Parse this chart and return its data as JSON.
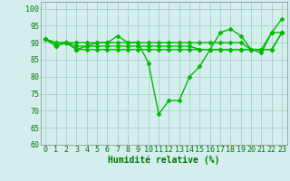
{
  "xlabel": "Humidité relative (%)",
  "xlim": [
    -0.5,
    23.5
  ],
  "ylim": [
    60,
    102
  ],
  "yticks": [
    60,
    65,
    70,
    75,
    80,
    85,
    90,
    95,
    100
  ],
  "xticks": [
    0,
    1,
    2,
    3,
    4,
    5,
    6,
    7,
    8,
    9,
    10,
    11,
    12,
    13,
    14,
    15,
    16,
    17,
    18,
    19,
    20,
    21,
    22,
    23
  ],
  "background_color": "#d4eeee",
  "grid_color": "#99ccbb",
  "line_color": "#00bb00",
  "series": [
    [
      91,
      89,
      90,
      88,
      89,
      90,
      90,
      92,
      90,
      90,
      84,
      69,
      73,
      73,
      80,
      83,
      88,
      93,
      94,
      92,
      88,
      87,
      93,
      97
    ],
    [
      91,
      90,
      90,
      90,
      90,
      90,
      90,
      90,
      90,
      90,
      90,
      90,
      90,
      90,
      90,
      90,
      90,
      90,
      90,
      90,
      88,
      88,
      93,
      93
    ],
    [
      91,
      90,
      90,
      89,
      89,
      89,
      89,
      89,
      89,
      89,
      89,
      89,
      89,
      89,
      89,
      88,
      88,
      88,
      88,
      88,
      88,
      88,
      88,
      93
    ],
    [
      91,
      89,
      90,
      88,
      88,
      88,
      88,
      88,
      88,
      88,
      88,
      88,
      88,
      88,
      88,
      88,
      88,
      88,
      88,
      88,
      88,
      88,
      88,
      93
    ]
  ],
  "marker": "D",
  "markersize": 2.5,
  "linewidth": 1.0,
  "font_color": "#007700",
  "tick_fontsize": 6,
  "xlabel_fontsize": 7
}
